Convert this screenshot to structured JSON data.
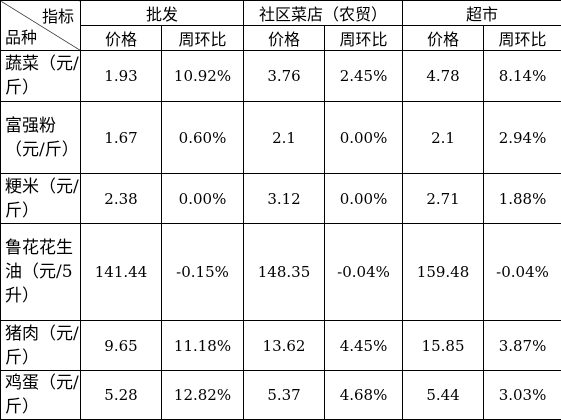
{
  "header": {
    "indicator_label": "指标",
    "variety_label": "品种",
    "markets": [
      {
        "name": "批发",
        "price_label": "价格",
        "change_label": "周环比"
      },
      {
        "name": "社区菜店（农贸）",
        "price_label": "价格",
        "change_label": "周环比"
      },
      {
        "name": "超市",
        "price_label": "价格",
        "change_label": "周环比"
      }
    ]
  },
  "rows": [
    {
      "name": "蔬菜（元/斤）",
      "values": [
        "1.93",
        "10.92%",
        "3.76",
        "2.45%",
        "4.78",
        "8.14%"
      ]
    },
    {
      "name": "富强粉（元/斤）",
      "values": [
        "1.67",
        "0.60%",
        "2.1",
        "0.00%",
        "2.1",
        "2.94%"
      ]
    },
    {
      "name": "粳米（元/斤）",
      "values": [
        "2.38",
        "0.00%",
        "3.12",
        "0.00%",
        "2.71",
        "1.88%"
      ]
    },
    {
      "name": "鲁花花生油（元/5升）",
      "values": [
        "141.44",
        "-0.15%",
        "148.35",
        "-0.04%",
        "159.48",
        "-0.04%"
      ]
    },
    {
      "name": "猪肉（元/斤）",
      "values": [
        "9.65",
        "11.18%",
        "13.62",
        "4.45%",
        "15.85",
        "3.87%"
      ]
    },
    {
      "name": "鸡蛋（元/斤）",
      "values": [
        "5.28",
        "12.82%",
        "5.37",
        "4.68%",
        "5.44",
        "3.03%"
      ]
    }
  ]
}
